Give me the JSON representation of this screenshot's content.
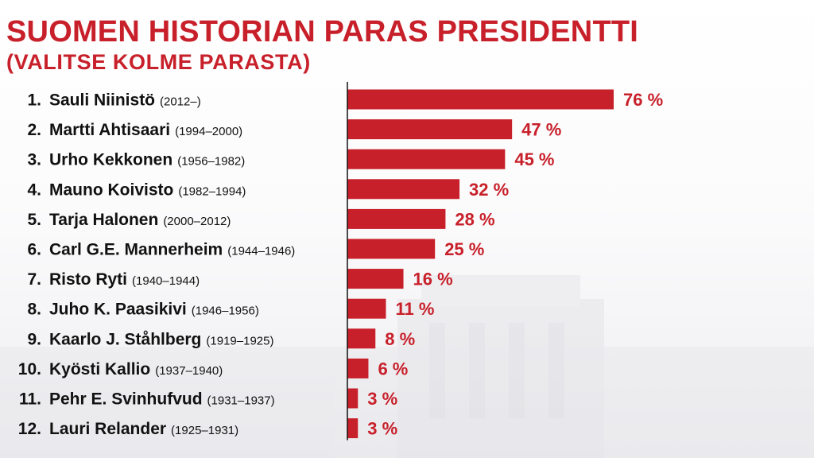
{
  "chart_data": {
    "type": "bar",
    "orientation": "horizontal",
    "title": "SUOMEN HISTORIAN PARAS PRESIDENTTI",
    "subtitle": "(VALITSE KOLME PARASTA)",
    "xlabel": "",
    "ylabel": "",
    "xlim": [
      0,
      76
    ],
    "unit_suffix": " %",
    "grid": false,
    "categories": [
      {
        "rank": "1.",
        "name": "Sauli Niinistö",
        "years": "(2012–)"
      },
      {
        "rank": "2.",
        "name": "Martti Ahtisaari",
        "years": "(1994–2000)"
      },
      {
        "rank": "3.",
        "name": "Urho Kekkonen",
        "years": "(1956–1982)"
      },
      {
        "rank": "4.",
        "name": "Mauno Koivisto",
        "years": "(1982–1994)"
      },
      {
        "rank": "5.",
        "name": "Tarja Halonen",
        "years": "(2000–2012)"
      },
      {
        "rank": "6.",
        "name": "Carl G.E. Mannerheim",
        "years": "(1944–1946)"
      },
      {
        "rank": "7.",
        "name": "Risto Ryti",
        "years": "(1940–1944)"
      },
      {
        "rank": "8.",
        "name": "Juho K. Paasikivi",
        "years": "(1946–1956)"
      },
      {
        "rank": "9.",
        "name": "Kaarlo J. Ståhlberg",
        "years": "(1919–1925)"
      },
      {
        "rank": "10.",
        "name": "Kyösti Kallio",
        "years": "(1937–1940)"
      },
      {
        "rank": "11.",
        "name": "Pehr E. Svinhufvud",
        "years": "(1931–1937)"
      },
      {
        "rank": "12.",
        "name": "Lauri Relander",
        "years": "(1925–1931)"
      }
    ],
    "values": [
      76,
      47,
      45,
      32,
      28,
      25,
      16,
      11,
      8,
      6,
      3,
      3
    ],
    "colors": {
      "bar": "#c8202a",
      "label": "#c8202a",
      "text": "#111111"
    }
  }
}
